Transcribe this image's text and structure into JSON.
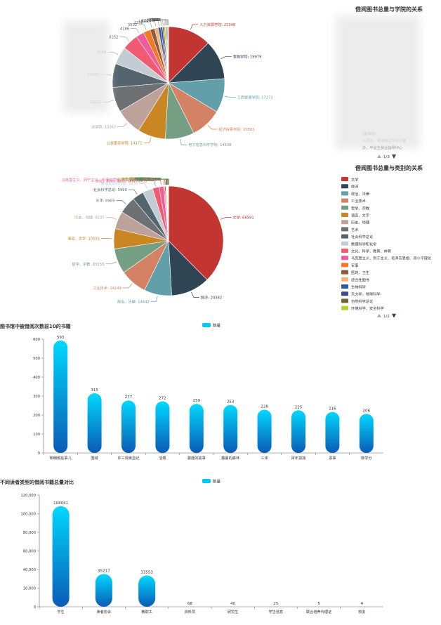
{
  "chart_data": [
    {
      "type": "pie",
      "title": "借阅图书总量与学院的关系",
      "legend_position": "right",
      "legend_page": "1/3",
      "legend_items": [
        "",
        "",
        "",
        "",
        "",
        "",
        "",
        "",
        "",
        "",
        ""
      ],
      "legend_partial": [
        "(基础部)",
        "人才办、离退休工作办公室",
        "办、毕业生就业指导中心"
      ],
      "slices": [
        {
          "label": "人力资源学院",
          "value": 21948,
          "color": "#c23531"
        },
        {
          "label": "金融学院",
          "value": 19979,
          "color": "#2f4554"
        },
        {
          "label": "工商管理学院",
          "value": 17273,
          "color": "#61a0a8"
        },
        {
          "label": "经济贸易学院",
          "value": 15883,
          "color": "#d48265"
        },
        {
          "label": "电子信息科学学院",
          "value": 14638,
          "color": "#749f83"
        },
        {
          "label": "公共事务学院",
          "value": 14171,
          "color": "#ca8622"
        },
        {
          "label": "法学院",
          "value": 13367,
          "color": "#bda29a"
        },
        {
          "label": "",
          "value": 12610,
          "color": "#6e7074"
        },
        {
          "label": "",
          "value": 12043,
          "color": "#546570"
        },
        {
          "label": "",
          "value": 9065,
          "color": "#c4ccd3"
        },
        {
          "label": "",
          "value": 8152,
          "color": "#f05b72"
        },
        {
          "label": "",
          "value": 4186,
          "color": "#ef5b9c"
        },
        {
          "label": "",
          "value": 3502,
          "color": "#f47920"
        },
        {
          "label": "",
          "value": 2338,
          "color": "#905a3d"
        },
        {
          "label": "",
          "value": 1814,
          "color": "#fab27b"
        },
        {
          "label": "",
          "value": 1256,
          "color": "#2a5caa"
        },
        {
          "label": "",
          "value": 980,
          "color": "#444693"
        },
        {
          "label": "",
          "value": 775,
          "color": "#726930"
        },
        {
          "label": "",
          "value": 634,
          "color": "#b2d235"
        },
        {
          "label": "",
          "value": 512,
          "color": "#6d8346"
        },
        {
          "label": "",
          "value": 420,
          "color": "#ac6767"
        },
        {
          "label": "",
          "value": 380,
          "color": "#1d953f"
        },
        {
          "label": "",
          "value": 300,
          "color": "#6950a1"
        }
      ]
    },
    {
      "type": "pie",
      "title": "借阅图书总量与类别的关系",
      "legend_position": "right",
      "legend_page": "1/2",
      "legend_items": [
        "文学",
        "经济",
        "政治、法律",
        "工业技术",
        "哲学、宗教",
        "语言、文字",
        "历史、地理",
        "艺术",
        "社会科学总论",
        "数理科学和化学",
        "文化、科学、教育、体育",
        "马克思主义、列宁主义、毛泽东思想、邓小平理论",
        "军事",
        "医药、卫生",
        "综合性图书",
        "生物科学",
        "天文学、地球科学",
        "自然科学总论",
        "环境科学、安全科学"
      ],
      "slices": [
        {
          "label": "文学: 66591",
          "value": 66591,
          "color": "#c23531"
        },
        {
          "label": "经济: 20382",
          "value": 20382,
          "color": "#2f4554"
        },
        {
          "label": "政治、法律: 14442",
          "value": 14442,
          "color": "#61a0a8"
        },
        {
          "label": "工业技术: 14149",
          "value": 14149,
          "color": "#d48265"
        },
        {
          "label": "哲学、宗教: 13133",
          "value": 13133,
          "color": "#749f83"
        },
        {
          "label": "语言、文字: 10591",
          "value": 10591,
          "color": "#ca8622"
        },
        {
          "label": "历史、地理: 9237",
          "value": 9237,
          "color": "#bda29a"
        },
        {
          "label": "艺术: 8955",
          "value": 8955,
          "color": "#6e7074"
        },
        {
          "label": "社会科学总论: 5990",
          "value": 5990,
          "color": "#546570"
        },
        {
          "label": "数理科学和化学: 5430",
          "value": 5430,
          "color": "#c4ccd3"
        },
        {
          "label": "文化、科学、教育、体育: 3439",
          "value": 3439,
          "color": "#f05b72"
        },
        {
          "label": "马克思主义、列宁主义、毛泽东思想、邓小平理论: 2326",
          "value": 2326,
          "color": "#ef5b9c"
        },
        {
          "label": "军事: 576",
          "value": 576,
          "color": "#f47920"
        },
        {
          "label": "医药、卫生: 568",
          "value": 568,
          "color": "#905a3d"
        },
        {
          "label": "综合性图书: 271",
          "value": 271,
          "color": "#fab27b"
        },
        {
          "label": "生物科学: 252",
          "value": 252,
          "color": "#2a5caa"
        },
        {
          "label": "天文学、地球科学: 250",
          "value": 250,
          "color": "#444693"
        },
        {
          "label": "自然科学总论: 248",
          "value": 248,
          "color": "#726930"
        },
        {
          "label": "环境科学、安全科学: 147",
          "value": 147,
          "color": "#b2d235"
        },
        {
          "label": "交通运输: 133",
          "value": 133,
          "color": "#6d8346"
        },
        {
          "label": "农业科学: 57",
          "value": 57,
          "color": "#ac6767"
        },
        {
          "label": "数理、航天: 45",
          "value": 45,
          "color": "#1d953f"
        }
      ]
    },
    {
      "type": "bar",
      "title": "图书馆中被借阅次数前10的书籍",
      "legend": "数量",
      "categories": [
        "明朝那些事儿",
        "围城",
        "许三观卖血记",
        "活着",
        "蘑菇的故事",
        "藤蔓的森林",
        "三体",
        "百年孤独",
        "恶事",
        "数学分"
      ],
      "values": [
        593,
        315,
        277,
        272,
        259,
        253,
        228,
        225,
        216,
        206
      ],
      "ylim": [
        0,
        600
      ],
      "yticks": [
        0,
        100,
        200,
        300,
        400,
        500,
        600
      ]
    },
    {
      "type": "bar",
      "title": "不同读者类型的借阅书籍总量对比",
      "legend": "数量",
      "categories": [
        "学生",
        "读者协会",
        "教职工",
        "资料员",
        "研究生",
        "学生信息",
        "联合培养代理证",
        "校友"
      ],
      "values": [
        108041,
        35217,
        33553,
        68,
        40,
        25,
        5,
        4
      ],
      "ylim": [
        0,
        120000
      ],
      "yticks": [
        "0",
        "20,000",
        "40,000",
        "60,000",
        "80,000",
        "100,000",
        "120,000"
      ]
    }
  ]
}
